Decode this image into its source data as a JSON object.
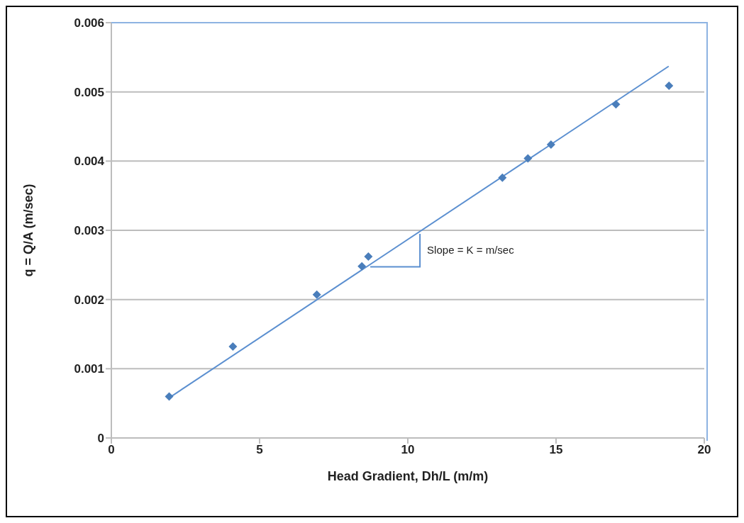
{
  "chart_data": {
    "type": "scatter",
    "xlabel": "Head Gradient, Dh/L (m/m)",
    "ylabel": "q = Q/A (m/sec)",
    "xlim": [
      0,
      20
    ],
    "xticks": [
      0,
      5,
      10,
      15,
      20
    ],
    "ylim": [
      0,
      0.006
    ],
    "yticks": [
      0,
      0.001,
      0.002,
      0.003,
      0.004,
      0.005,
      0.006
    ],
    "grid": "y",
    "series": [
      {
        "marker": "diamond",
        "color": "#4a7ebb",
        "x": [
          1.95,
          4.1,
          6.93,
          8.45,
          8.67,
          13.19,
          14.05,
          14.83,
          17.02,
          18.81
        ],
        "values": [
          0.0006,
          0.00132,
          0.00207,
          0.00248,
          0.00262,
          0.00376,
          0.00404,
          0.00424,
          0.00482,
          0.00509
        ]
      },
      {
        "type": "line",
        "color": "#5b8fd0",
        "x": [
          1.95,
          18.8
        ],
        "values": [
          0.00058,
          0.00537
        ]
      }
    ],
    "annotations": [
      {
        "text": "Slope = K = m/sec",
        "x": 10.36,
        "y": 0.00297
      }
    ]
  }
}
